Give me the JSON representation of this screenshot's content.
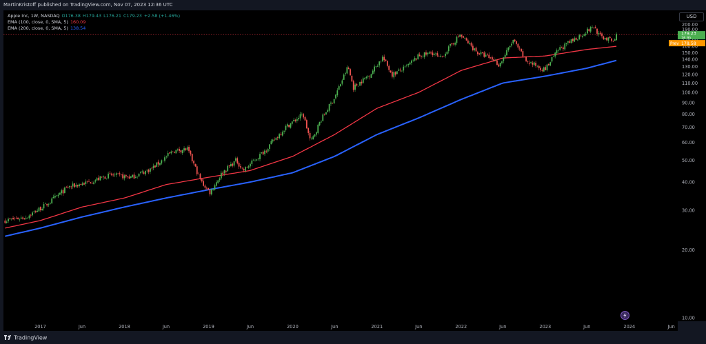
{
  "header": {
    "published": "MartinKristoff published on TradingView.com, Nov 07, 2023 12:36 UTC"
  },
  "legend": {
    "symbol": "Apple Inc, 1W, NASDAQ",
    "open": "O176.38",
    "high": "H179.43",
    "low": "L176.21",
    "close": "C179.23",
    "change": "+2.58 (+1.46%)",
    "ema100_label": "EMA (100, close, 0, SMA, 5)",
    "ema100_value": "160.09",
    "ema200_label": "EMA (200, close, 0, SMA, 5)",
    "ema200_value": "138.54"
  },
  "currency": "USD",
  "price_tag": {
    "value": "179.23",
    "sub": "16 9h"
  },
  "prev_tag": {
    "label": "Prev",
    "value": "178.58"
  },
  "footer": {
    "brand": "TradingView"
  },
  "colors": {
    "up": "#26a69a",
    "up_bright": "#4caf50",
    "down": "#ef5350",
    "ema100": "#f23645",
    "ema200": "#2962ff",
    "price_tag": "#4caf50",
    "prev_tag": "#ff9800"
  },
  "chart_data": {
    "type": "line",
    "title": "Apple Inc, 1W, NASDAQ",
    "y_scale": "log",
    "ylim": [
      10,
      220
    ],
    "y_ticks": [
      220,
      210,
      200,
      190,
      180,
      170,
      160,
      150,
      140,
      130,
      120,
      110,
      100,
      90,
      80,
      70,
      60,
      50,
      40,
      30,
      20,
      10
    ],
    "y_tick_labels": [
      "220.00",
      "210.00",
      "200.00",
      "190.00",
      "180.00",
      "170.00",
      "160.00",
      "150.00",
      "140.00",
      "130.00",
      "120.00",
      "110.00",
      "100.00",
      "90.00",
      "80.00",
      "70.00",
      "60.00",
      "50.00",
      "40.00",
      "30.00",
      "20.00",
      "10.00"
    ],
    "x_ticks": [
      {
        "date": "2017-01-01",
        "label": "2017"
      },
      {
        "date": "2017-07-01",
        "label": "Jun"
      },
      {
        "date": "2018-01-01",
        "label": "2018"
      },
      {
        "date": "2018-07-01",
        "label": "Jun"
      },
      {
        "date": "2019-01-01",
        "label": "2019"
      },
      {
        "date": "2019-07-01",
        "label": "Jun"
      },
      {
        "date": "2020-01-01",
        "label": "2020"
      },
      {
        "date": "2020-07-01",
        "label": "Jun"
      },
      {
        "date": "2021-01-01",
        "label": "2021"
      },
      {
        "date": "2021-07-01",
        "label": "Jun"
      },
      {
        "date": "2022-01-01",
        "label": "2022"
      },
      {
        "date": "2022-07-01",
        "label": "Jun"
      },
      {
        "date": "2023-01-01",
        "label": "2023"
      },
      {
        "date": "2023-07-01",
        "label": "Jun"
      },
      {
        "date": "2024-01-01",
        "label": "2024"
      },
      {
        "date": "2024-07-01",
        "label": "Jun"
      }
    ],
    "price": {
      "name": "Apple Inc",
      "x": [
        "2016-08-01",
        "2016-11-01",
        "2017-02-01",
        "2017-05-01",
        "2017-08-01",
        "2017-11-01",
        "2018-02-01",
        "2018-05-01",
        "2018-08-01",
        "2018-10-01",
        "2018-12-01",
        "2019-01-07",
        "2019-03-01",
        "2019-05-01",
        "2019-06-01",
        "2019-09-01",
        "2019-12-01",
        "2020-02-15",
        "2020-03-20",
        "2020-05-01",
        "2020-07-01",
        "2020-08-28",
        "2020-09-21",
        "2020-12-01",
        "2021-01-25",
        "2021-03-08",
        "2021-05-01",
        "2021-07-01",
        "2021-09-01",
        "2021-10-01",
        "2021-12-27",
        "2022-03-14",
        "2022-05-20",
        "2022-06-15",
        "2022-08-15",
        "2022-10-10",
        "2022-12-30",
        "2023-03-01",
        "2023-05-01",
        "2023-07-31",
        "2023-08-25",
        "2023-10-27",
        "2023-11-06"
      ],
      "values": [
        27,
        28,
        32,
        38,
        40,
        43,
        42,
        46,
        55,
        56,
        40,
        36,
        44,
        50,
        45,
        55,
        70,
        80,
        60,
        75,
        95,
        130,
        105,
        120,
        143,
        120,
        128,
        145,
        150,
        141,
        180,
        150,
        140,
        132,
        170,
        138,
        126,
        155,
        170,
        196,
        178,
        168,
        179.23
      ],
      "ohlc_last": {
        "open": 176.38,
        "high": 179.43,
        "low": 176.21,
        "close": 179.23
      }
    },
    "series": [
      {
        "name": "EMA (100, close, 0, SMA, 5)",
        "x": [
          "2016-08-01",
          "2017-01-01",
          "2017-07-01",
          "2018-01-01",
          "2018-07-01",
          "2019-01-01",
          "2019-07-01",
          "2020-01-01",
          "2020-07-01",
          "2021-01-01",
          "2021-07-01",
          "2022-01-01",
          "2022-07-01",
          "2023-01-01",
          "2023-07-01",
          "2023-11-06"
        ],
        "values": [
          25,
          27,
          31,
          34,
          39,
          42,
          45,
          52,
          65,
          85,
          100,
          125,
          142,
          145,
          155,
          160.09
        ]
      },
      {
        "name": "EMA (200, close, 0, SMA, 5)",
        "x": [
          "2016-08-01",
          "2017-01-01",
          "2017-07-01",
          "2018-01-01",
          "2018-07-01",
          "2019-01-01",
          "2019-07-01",
          "2020-01-01",
          "2020-07-01",
          "2021-01-01",
          "2021-07-01",
          "2022-01-01",
          "2022-07-01",
          "2023-01-01",
          "2023-07-01",
          "2023-11-06"
        ],
        "values": [
          23,
          25,
          28,
          31,
          34,
          37,
          40,
          44,
          52,
          65,
          77,
          93,
          110,
          118,
          128,
          138.54
        ]
      }
    ],
    "reference_line": {
      "value": 180.5
    },
    "grid": false,
    "legend_position": "top-left"
  }
}
